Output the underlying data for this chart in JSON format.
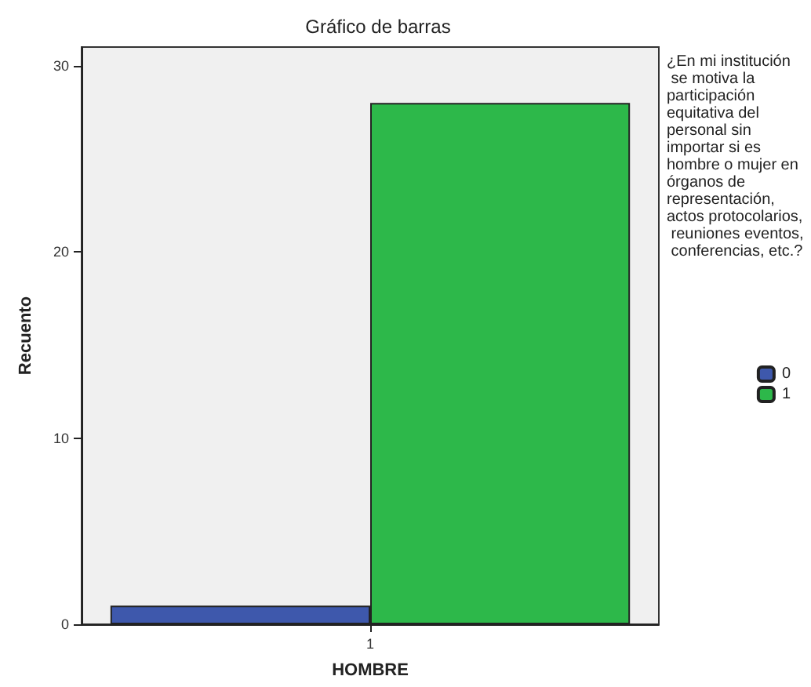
{
  "chart_data": {
    "type": "bar",
    "title": "Gráfico de barras",
    "xlabel": "HOMBRE",
    "ylabel": "Recuento",
    "legend_title": "¿En mi institución se motiva la participación equitativa del personal sin importar si es hombre o mujer en órganos de representación, actos protocolarios, reuniones eventos, conferencias, etc.?",
    "categories": [
      "1"
    ],
    "series": [
      {
        "name": "0",
        "color": "#3e58ac",
        "values": [
          1
        ]
      },
      {
        "name": "1",
        "color": "#2db84a",
        "values": [
          28
        ]
      }
    ],
    "ylim": [
      0,
      31
    ],
    "yticks": [
      0,
      10,
      20,
      30
    ],
    "grid": false,
    "legend": "right"
  }
}
